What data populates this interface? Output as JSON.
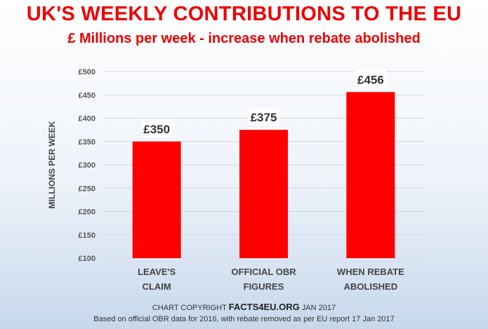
{
  "header": {
    "title": "UK'S WEEKLY CONTRIBUTIONS TO THE EU",
    "subtitle": "£ Millions per week - increase when rebate abolished"
  },
  "footer": {
    "copyright_prefix": "CHART COPYRIGHT",
    "copyright_brand": "FACTS4EU.ORG",
    "copyright_suffix": "JAN 2017",
    "source_note": "Based on official OBR data for 2016, with rebate removed as per EU report 17 Jan 2017"
  },
  "chart_data": {
    "type": "bar",
    "title": "UK'S WEEKLY CONTRIBUTIONS TO THE EU",
    "subtitle": "£ Millions per week - increase when rebate abolished",
    "categories": [
      [
        "LEAVE'S",
        "CLAIM"
      ],
      [
        "OFFICIAL OBR",
        "FIGURES"
      ],
      [
        "WHEN REBATE",
        "ABOLISHED"
      ]
    ],
    "values": [
      350,
      375,
      456
    ],
    "data_labels": [
      "£350",
      "£375",
      "£456"
    ],
    "ylabel": "MILLIONS PER WEEK",
    "ylim": [
      100,
      500
    ],
    "yticks": [
      100,
      150,
      200,
      250,
      300,
      350,
      400,
      450,
      500
    ],
    "ytick_labels": [
      "£100",
      "£150",
      "£200",
      "£250",
      "£300",
      "£350",
      "£400",
      "£450",
      "£500"
    ],
    "grid": true,
    "legend": "none",
    "bar_color": "#ff0000"
  }
}
